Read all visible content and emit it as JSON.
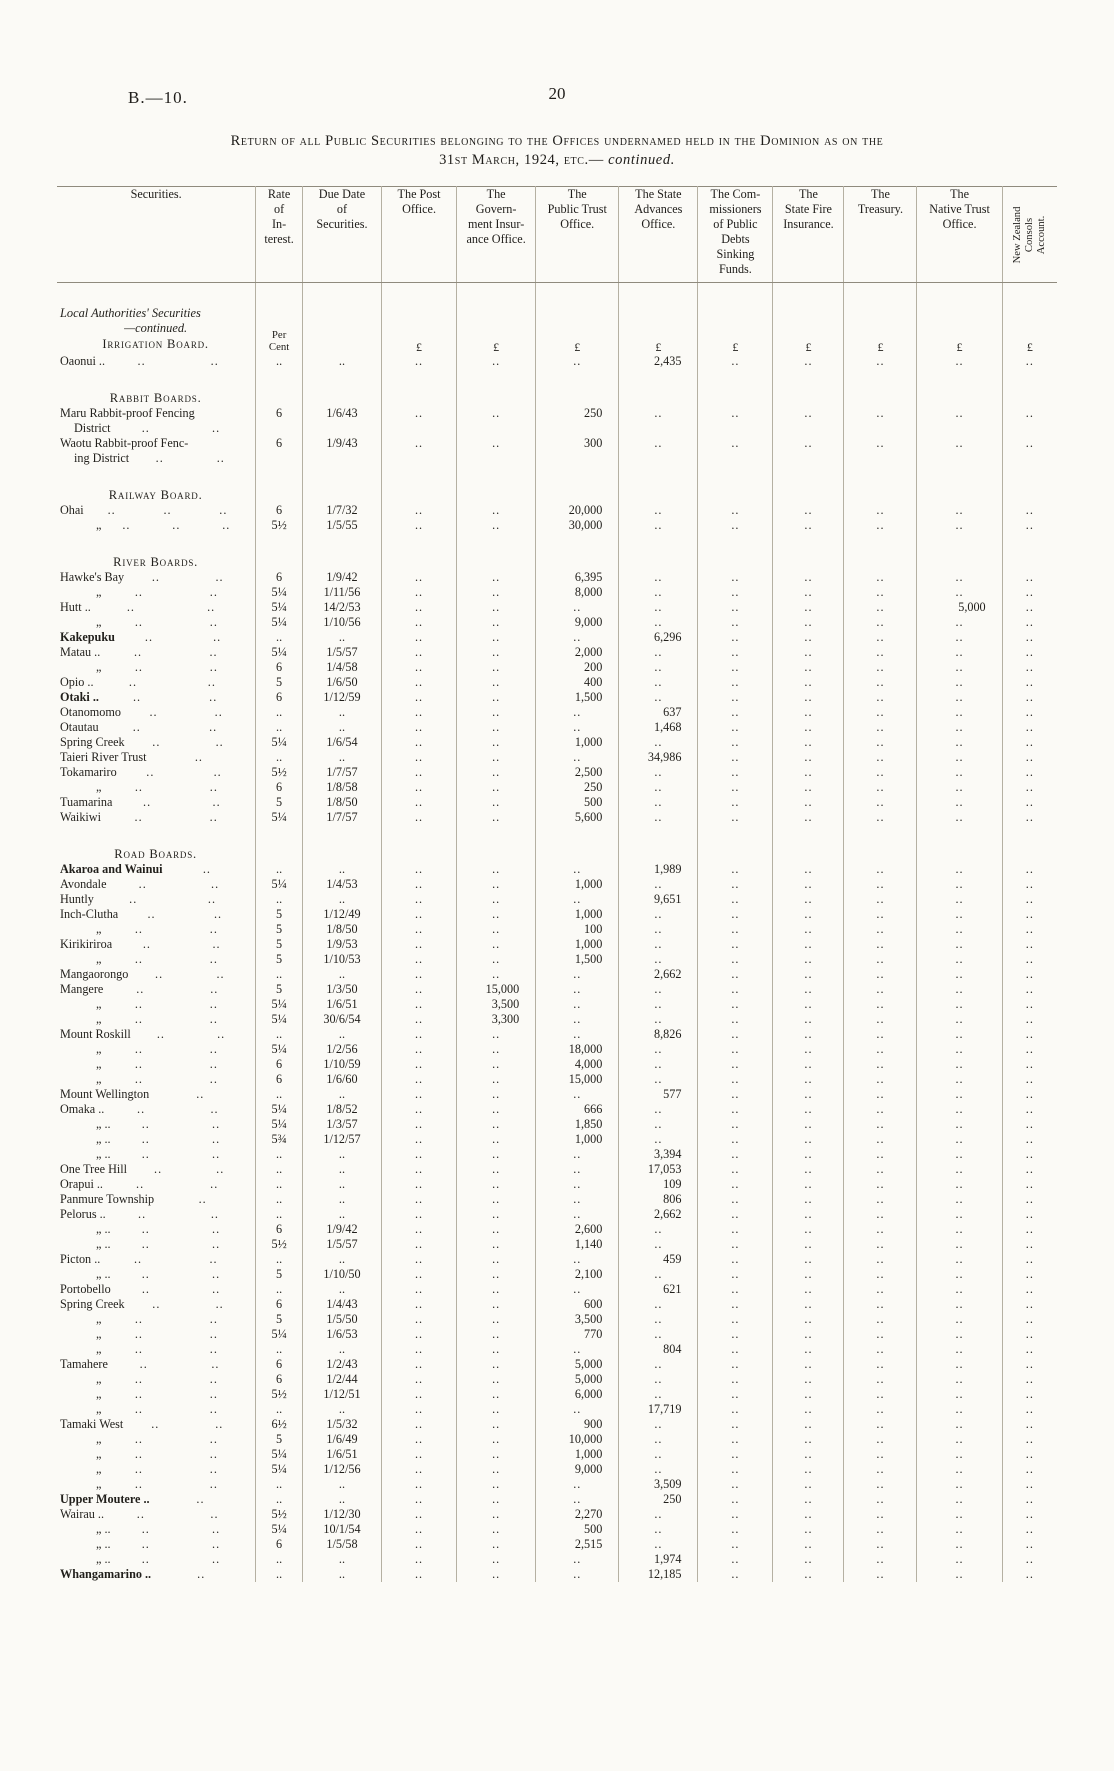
{
  "page": {
    "doc_ref": "B.—10.",
    "page_number": "20",
    "title_line1": "Return of all Public Securities belonging to the Offices undernamed held in the Dominion as on the",
    "title_line2": "31st March, 1924, etc.—",
    "title_continued": "continued."
  },
  "table": {
    "empty_marker": "..",
    "units": {
      "rate": "Per\nCent",
      "money": "£"
    },
    "columns": [
      {
        "key": "securities",
        "label": "Securities."
      },
      {
        "key": "rate",
        "label": "Rate\nof\nIn-\nterest."
      },
      {
        "key": "due_date",
        "label": "Due Date\nof\nSecurities."
      },
      {
        "key": "post_office",
        "label": "The Post\nOffice."
      },
      {
        "key": "govt_insurance",
        "label": "The\nGovern-\nment Insur-\nance Office."
      },
      {
        "key": "public_trust",
        "label": "The\nPublic Trust\nOffice."
      },
      {
        "key": "state_advances",
        "label": "The State\nAdvances\nOffice."
      },
      {
        "key": "commissioners_sinking",
        "label": "The Com-\nmissioners\nof Public\nDebts\nSinking\nFunds."
      },
      {
        "key": "state_fire",
        "label": "The\nState Fire\nInsurance."
      },
      {
        "key": "treasury",
        "label": "The\nTreasury."
      },
      {
        "key": "native_trust",
        "label": "The\nNative Trust\nOffice."
      },
      {
        "key": "nz_consols",
        "label": "New Zealand\nConsols\nAccount.",
        "rotated": true
      }
    ],
    "rows": [
      {
        "t": "i",
        "lines": [
          "Local Authorities' Securities",
          "—continued."
        ],
        "heading": "Irrigation Board."
      },
      {
        "t": "d",
        "n": "Oaonui ..",
        "dt": 2,
        "r": "..",
        "dd": "..",
        "v": {
          "sa": "2,435"
        }
      },
      {
        "t": "s",
        "l": "Rabbit Boards."
      },
      {
        "t": "d",
        "n": "Maru Rabbit-proof Fencing",
        "n2": "District",
        "dt": 0,
        "dt2": 2,
        "r": "6",
        "dd": "1/6/43",
        "v": {
          "pt": "250"
        }
      },
      {
        "t": "d",
        "n": "Waotu Rabbit-proof Fenc-",
        "n2": "ing District",
        "dt": 0,
        "dt2": 2,
        "r": "6",
        "dd": "1/9/43",
        "v": {
          "pt": "300"
        }
      },
      {
        "t": "s",
        "l": "Railway Board."
      },
      {
        "t": "d",
        "n": "Ohai",
        "dt": 3,
        "r": "6",
        "dd": "1/7/32",
        "v": {
          "pt": "20,000"
        }
      },
      {
        "t": "d",
        "n": "„",
        "di": 1,
        "dt": 3,
        "r": "5½",
        "dd": "1/5/55",
        "v": {
          "pt": "30,000"
        }
      },
      {
        "t": "s",
        "l": "River Boards."
      },
      {
        "t": "d",
        "n": "Hawke's Bay",
        "dt": 2,
        "r": "6",
        "dd": "1/9/42",
        "v": {
          "pt": "6,395"
        }
      },
      {
        "t": "d",
        "n": "„",
        "di": 1,
        "dt": 2,
        "r": "5¼",
        "dd": "1/11/56",
        "v": {
          "pt": "8,000"
        }
      },
      {
        "t": "d",
        "n": "Hutt ..",
        "dt": 2,
        "r": "5¼",
        "dd": "14/2/53",
        "v": {
          "nt": "5,000"
        }
      },
      {
        "t": "d",
        "n": "„",
        "di": 1,
        "dt": 2,
        "r": "5¼",
        "dd": "1/10/56",
        "v": {
          "pt": "9,000"
        }
      },
      {
        "t": "d",
        "n": "Kakepuku",
        "b": 1,
        "dt": 2,
        "r": "..",
        "dd": "..",
        "v": {
          "sa": "6,296"
        }
      },
      {
        "t": "d",
        "n": "Matau ..",
        "dt": 2,
        "r": "5¼",
        "dd": "1/5/57",
        "v": {
          "pt": "2,000"
        }
      },
      {
        "t": "d",
        "n": "„",
        "di": 1,
        "dt": 2,
        "r": "6",
        "dd": "1/4/58",
        "v": {
          "pt": "200"
        }
      },
      {
        "t": "d",
        "n": "Opio ..",
        "dt": 2,
        "r": "5",
        "dd": "1/6/50",
        "v": {
          "pt": "400"
        }
      },
      {
        "t": "d",
        "n": "Otaki ..",
        "b": 1,
        "dt": 2,
        "r": "6",
        "dd": "1/12/59",
        "v": {
          "pt": "1,500"
        }
      },
      {
        "t": "d",
        "n": "Otanomomo",
        "dt": 2,
        "r": "..",
        "dd": "..",
        "v": {
          "sa": "637"
        }
      },
      {
        "t": "d",
        "n": "Otautau",
        "dt": 2,
        "r": "..",
        "dd": "..",
        "v": {
          "sa": "1,468"
        }
      },
      {
        "t": "d",
        "n": "Spring Creek",
        "dt": 2,
        "r": "5¼",
        "dd": "1/6/54",
        "v": {
          "pt": "1,000"
        }
      },
      {
        "t": "d",
        "n": "Taieri River Trust",
        "dt": 1,
        "r": "..",
        "dd": "..",
        "v": {
          "sa": "34,986"
        }
      },
      {
        "t": "d",
        "n": "Tokamariro",
        "dt": 2,
        "r": "5½",
        "dd": "1/7/57",
        "v": {
          "pt": "2,500"
        }
      },
      {
        "t": "d",
        "n": "„",
        "di": 1,
        "dt": 2,
        "r": "6",
        "dd": "1/8/58",
        "v": {
          "pt": "250"
        }
      },
      {
        "t": "d",
        "n": "Tuamarina",
        "dt": 2,
        "r": "5",
        "dd": "1/8/50",
        "v": {
          "pt": "500"
        }
      },
      {
        "t": "d",
        "n": "Waikiwi",
        "dt": 2,
        "r": "5¼",
        "dd": "1/7/57",
        "v": {
          "pt": "5,600"
        }
      },
      {
        "t": "s",
        "l": "Road Boards."
      },
      {
        "t": "d",
        "n": "Akaroa and Wainui",
        "b": 1,
        "dt": 1,
        "r": "..",
        "dd": "..",
        "v": {
          "sa": "1,989"
        }
      },
      {
        "t": "d",
        "n": "Avondale",
        "dt": 2,
        "r": "5¼",
        "dd": "1/4/53",
        "v": {
          "pt": "1,000"
        }
      },
      {
        "t": "d",
        "n": "Huntly",
        "dt": 2,
        "r": "..",
        "dd": "..",
        "v": {
          "sa": "9,651"
        }
      },
      {
        "t": "d",
        "n": "Inch-Clutha",
        "dt": 2,
        "r": "5",
        "dd": "1/12/49",
        "v": {
          "pt": "1,000"
        }
      },
      {
        "t": "d",
        "n": "„",
        "di": 1,
        "dt": 2,
        "r": "5",
        "dd": "1/8/50",
        "v": {
          "pt": "100"
        }
      },
      {
        "t": "d",
        "n": "Kirikiriroa",
        "dt": 2,
        "r": "5",
        "dd": "1/9/53",
        "v": {
          "pt": "1,000"
        }
      },
      {
        "t": "d",
        "n": "„",
        "di": 1,
        "dt": 2,
        "r": "5",
        "dd": "1/10/53",
        "v": {
          "pt": "1,500"
        }
      },
      {
        "t": "d",
        "n": "Mangaorongo",
        "dt": 2,
        "r": "..",
        "dd": "..",
        "v": {
          "sa": "2,662"
        }
      },
      {
        "t": "d",
        "n": "Mangere",
        "dt": 2,
        "r": "5",
        "dd": "1/3/50",
        "v": {
          "gi": "15,000"
        }
      },
      {
        "t": "d",
        "n": "„",
        "di": 1,
        "dt": 2,
        "r": "5¼",
        "dd": "1/6/51",
        "v": {
          "gi": "3,500"
        }
      },
      {
        "t": "d",
        "n": "„",
        "di": 1,
        "dt": 2,
        "r": "5¼",
        "dd": "30/6/54",
        "v": {
          "gi": "3,300"
        }
      },
      {
        "t": "d",
        "n": "Mount Roskill",
        "dt": 2,
        "r": "..",
        "dd": "..",
        "v": {
          "sa": "8,826"
        }
      },
      {
        "t": "d",
        "n": "„",
        "di": 1,
        "dt": 2,
        "r": "5¼",
        "dd": "1/2/56",
        "v": {
          "pt": "18,000"
        }
      },
      {
        "t": "d",
        "n": "„",
        "di": 1,
        "dt": 2,
        "r": "6",
        "dd": "1/10/59",
        "v": {
          "pt": "4,000"
        }
      },
      {
        "t": "d",
        "n": "„",
        "di": 1,
        "dt": 2,
        "r": "6",
        "dd": "1/6/60",
        "v": {
          "pt": "15,000"
        }
      },
      {
        "t": "d",
        "n": "Mount Wellington",
        "dt": 1,
        "r": "..",
        "dd": "..",
        "v": {
          "sa": "577"
        }
      },
      {
        "t": "d",
        "n": "Omaka ..",
        "dt": 2,
        "r": "5¼",
        "dd": "1/8/52",
        "v": {
          "pt": "666"
        }
      },
      {
        "t": "d",
        "n": "„ ..",
        "di": 1,
        "dt": 2,
        "r": "5¼",
        "dd": "1/3/57",
        "v": {
          "pt": "1,850"
        }
      },
      {
        "t": "d",
        "n": "„ ..",
        "di": 1,
        "dt": 2,
        "r": "5¾",
        "dd": "1/12/57",
        "v": {
          "pt": "1,000"
        }
      },
      {
        "t": "d",
        "n": "„ ..",
        "di": 1,
        "dt": 2,
        "r": "..",
        "dd": "..",
        "v": {
          "sa": "3,394"
        }
      },
      {
        "t": "d",
        "n": "One Tree Hill",
        "dt": 2,
        "r": "..",
        "dd": "..",
        "v": {
          "sa": "17,053"
        }
      },
      {
        "t": "d",
        "n": "Orapui ..",
        "dt": 2,
        "r": "..",
        "dd": "..",
        "v": {
          "sa": "109"
        }
      },
      {
        "t": "d",
        "n": "Panmure Township",
        "dt": 1,
        "r": "..",
        "dd": "..",
        "v": {
          "sa": "806"
        }
      },
      {
        "t": "d",
        "n": "Pelorus ..",
        "dt": 2,
        "r": "..",
        "dd": "..",
        "v": {
          "sa": "2,662"
        }
      },
      {
        "t": "d",
        "n": "„ ..",
        "di": 1,
        "dt": 2,
        "r": "6",
        "dd": "1/9/42",
        "v": {
          "pt": "2,600"
        }
      },
      {
        "t": "d",
        "n": "„ ..",
        "di": 1,
        "dt": 2,
        "r": "5½",
        "dd": "1/5/57",
        "v": {
          "pt": "1,140"
        }
      },
      {
        "t": "d",
        "n": "Picton ..",
        "dt": 2,
        "r": "..",
        "dd": "..",
        "v": {
          "sa": "459"
        }
      },
      {
        "t": "d",
        "n": "„ ..",
        "di": 1,
        "dt": 2,
        "r": "5",
        "dd": "1/10/50",
        "v": {
          "pt": "2,100"
        }
      },
      {
        "t": "d",
        "n": "Portobello",
        "dt": 2,
        "r": "..",
        "dd": "..",
        "v": {
          "sa": "621"
        }
      },
      {
        "t": "d",
        "n": "Spring Creek",
        "dt": 2,
        "r": "6",
        "dd": "1/4/43",
        "v": {
          "pt": "600"
        }
      },
      {
        "t": "d",
        "n": "„",
        "di": 1,
        "dt": 2,
        "r": "5",
        "dd": "1/5/50",
        "v": {
          "pt": "3,500"
        }
      },
      {
        "t": "d",
        "n": "„",
        "di": 1,
        "dt": 2,
        "r": "5¼",
        "dd": "1/6/53",
        "v": {
          "pt": "770"
        }
      },
      {
        "t": "d",
        "n": "„",
        "di": 1,
        "dt": 2,
        "r": "..",
        "dd": "..",
        "v": {
          "sa": "804"
        }
      },
      {
        "t": "d",
        "n": "Tamahere",
        "dt": 2,
        "r": "6",
        "dd": "1/2/43",
        "v": {
          "pt": "5,000"
        }
      },
      {
        "t": "d",
        "n": "„",
        "di": 1,
        "dt": 2,
        "r": "6",
        "dd": "1/2/44",
        "v": {
          "pt": "5,000"
        }
      },
      {
        "t": "d",
        "n": "„",
        "di": 1,
        "dt": 2,
        "r": "5½",
        "dd": "1/12/51",
        "v": {
          "pt": "6,000"
        }
      },
      {
        "t": "d",
        "n": "„",
        "di": 1,
        "dt": 2,
        "r": "..",
        "dd": "..",
        "v": {
          "sa": "17,719"
        }
      },
      {
        "t": "d",
        "n": "Tamaki West",
        "dt": 2,
        "r": "6½",
        "dd": "1/5/32",
        "v": {
          "pt": "900"
        }
      },
      {
        "t": "d",
        "n": "„",
        "di": 1,
        "dt": 2,
        "r": "5",
        "dd": "1/6/49",
        "v": {
          "pt": "10,000"
        }
      },
      {
        "t": "d",
        "n": "„",
        "di": 1,
        "dt": 2,
        "r": "5¼",
        "dd": "1/6/51",
        "v": {
          "pt": "1,000"
        }
      },
      {
        "t": "d",
        "n": "„",
        "di": 1,
        "dt": 2,
        "r": "5¼",
        "dd": "1/12/56",
        "v": {
          "pt": "9,000"
        }
      },
      {
        "t": "d",
        "n": "„",
        "di": 1,
        "dt": 2,
        "r": "..",
        "dd": "..",
        "v": {
          "sa": "3,509"
        }
      },
      {
        "t": "d",
        "n": "Upper Moutere ..",
        "b": 1,
        "dt": 1,
        "r": "..",
        "dd": "..",
        "v": {
          "sa": "250"
        }
      },
      {
        "t": "d",
        "n": "Wairau ..",
        "dt": 2,
        "r": "5½",
        "dd": "1/12/30",
        "v": {
          "pt": "2,270"
        }
      },
      {
        "t": "d",
        "n": "„ ..",
        "di": 1,
        "dt": 2,
        "r": "5¼",
        "dd": "10/1/54",
        "v": {
          "pt": "500"
        }
      },
      {
        "t": "d",
        "n": "„ ..",
        "di": 1,
        "dt": 2,
        "r": "6",
        "dd": "1/5/58",
        "v": {
          "pt": "2,515"
        }
      },
      {
        "t": "d",
        "n": "„ ..",
        "di": 1,
        "dt": 2,
        "r": "..",
        "dd": "..",
        "v": {
          "sa": "1,974"
        }
      },
      {
        "t": "d",
        "n": "Whangamarino ..",
        "b": 1,
        "dt": 1,
        "r": "..",
        "dd": "..",
        "v": {
          "sa": "12,185"
        }
      }
    ]
  }
}
